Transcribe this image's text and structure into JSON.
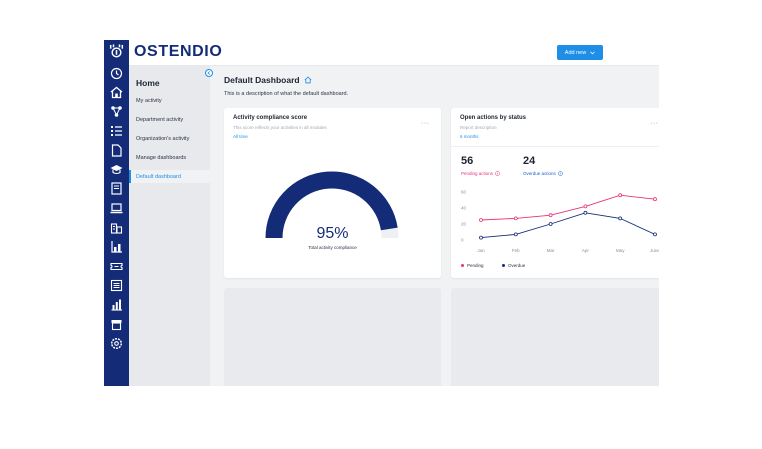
{
  "brand": {
    "name": "OSTENDIO"
  },
  "header": {
    "add_button_label": "Add new"
  },
  "rail": {
    "icons": [
      "clock-icon",
      "home-icon",
      "network-icon",
      "checklist-icon",
      "document-icon",
      "graduation-cap-icon",
      "book-icon",
      "laptop-icon",
      "building-icon",
      "chart-building-icon",
      "ticket-icon",
      "list-icon",
      "bar-chart-icon",
      "store-icon",
      "settings-icon"
    ]
  },
  "subnav": {
    "title": "Home",
    "items": [
      {
        "label": "My activity"
      },
      {
        "label": "Department activity"
      },
      {
        "label": "Organization's activity"
      },
      {
        "label": "Manage dashboards"
      },
      {
        "label": "Default dashboard"
      }
    ],
    "active_index": 4
  },
  "page": {
    "title": "Default Dashboard",
    "description": "This is a description of what the default dashboard."
  },
  "compliance_card": {
    "title": "Activity compliance score",
    "subtitle": "This score reflects your activities in all modules",
    "filter_link": "All time",
    "more": "···",
    "value_text": "95%",
    "value": 0.95,
    "label": "Total activity compliance",
    "colors": {
      "fill": "#142c78",
      "track": "#eef0f3"
    }
  },
  "actions_card": {
    "title": "Open actions by status",
    "subtitle": "Report description",
    "filter_link": "6 months",
    "more": "···",
    "pending": {
      "value": "56",
      "label": "Pending actions"
    },
    "overdue": {
      "value": "24",
      "label": "Overdue actions"
    },
    "legend": [
      {
        "name": "Pending",
        "color": "#e8337a"
      },
      {
        "name": "Overdue",
        "color": "#142c78"
      }
    ]
  },
  "chart_data": {
    "type": "line",
    "x": [
      "Jan",
      "Feb",
      "Mar",
      "Apr",
      "May",
      "June"
    ],
    "yticks": [
      0,
      20,
      40,
      60
    ],
    "ylim": [
      0,
      60
    ],
    "grid": false,
    "legend": "bottom-left",
    "series": [
      {
        "name": "Pending",
        "color": "#e8337a",
        "values": [
          25,
          27,
          31,
          42,
          56,
          51
        ]
      },
      {
        "name": "Overdue",
        "color": "#142c78",
        "values": [
          3,
          7,
          20,
          34,
          27,
          7
        ]
      }
    ]
  }
}
